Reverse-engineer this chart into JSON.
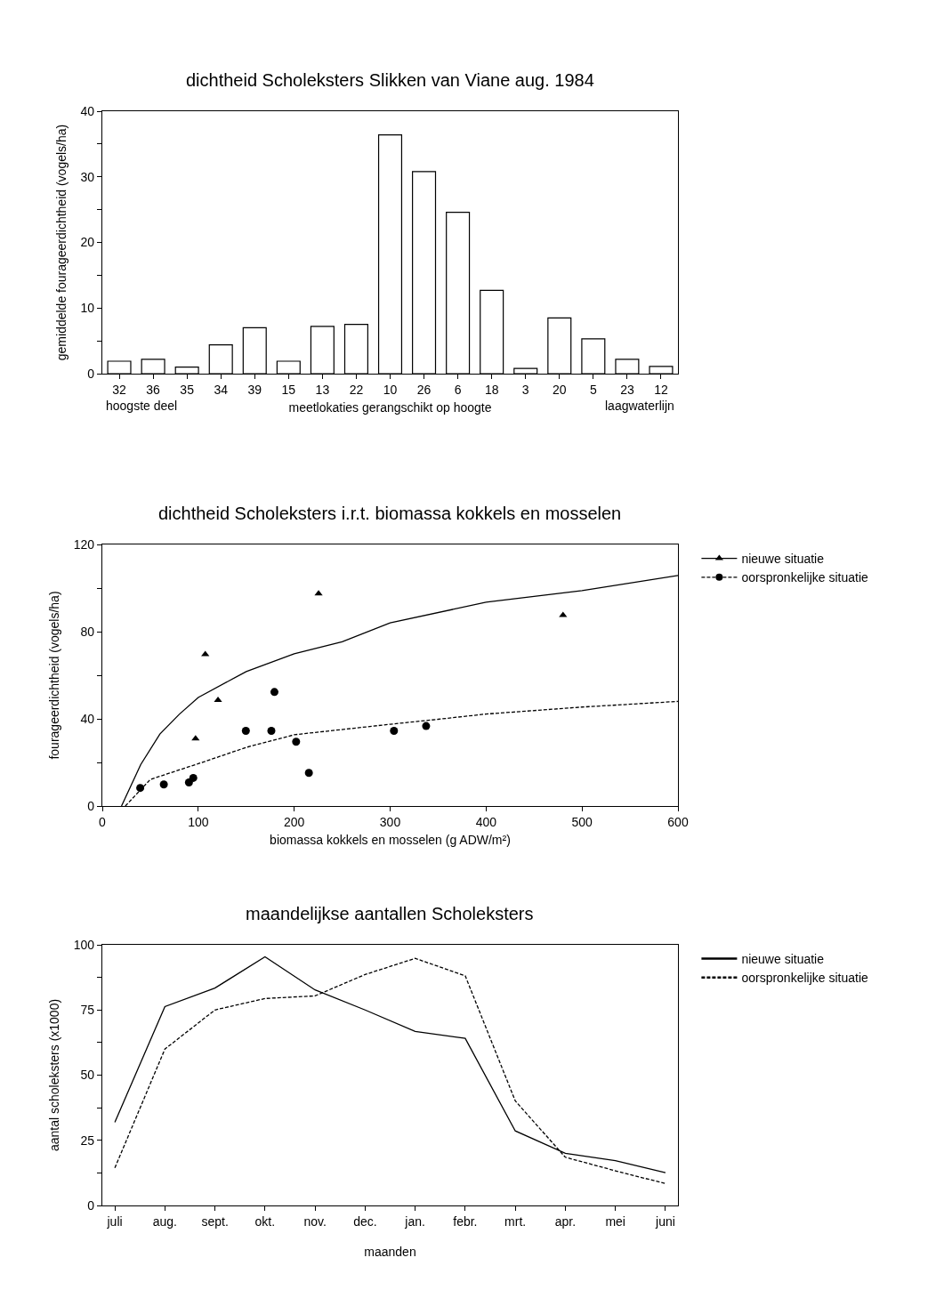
{
  "chart_data": [
    {
      "type": "bar",
      "title": "dichtheid Scholeksters Slikken van Viane aug. 1984",
      "xlabel": "meetlokaties gerangschikt op hoogte",
      "ylabel": "gemiddelde fourageerdichtheid (vogels/ha)",
      "categories": [
        "32",
        "36",
        "35",
        "34",
        "39",
        "15",
        "13",
        "22",
        "10",
        "26",
        "6",
        "18",
        "3",
        "20",
        "5",
        "23",
        "12"
      ],
      "values": [
        1.9,
        2.2,
        1.0,
        4.4,
        7.0,
        1.9,
        7.2,
        7.5,
        36.4,
        30.8,
        24.6,
        12.7,
        0.8,
        8.5,
        5.3,
        2.2,
        1.1
      ],
      "color": "#ffffff",
      "ylim": [
        0,
        40
      ],
      "yticks": [
        0,
        {
          "value": 5,
          "label": null
        },
        10,
        {
          "value": 15,
          "label": null
        },
        20,
        {
          "value": 25,
          "label": null
        },
        30,
        {
          "value": 35,
          "label": null
        },
        40
      ],
      "annotations": [
        "hoogste deel",
        "laagwaterlijn"
      ],
      "grid": false,
      "legend": false
    },
    {
      "type": "scatter",
      "title": "dichtheid Scholeksters i.r.t. biomassa kokkels en mosselen",
      "xlabel": "biomassa kokkels en mosselen (g ADW/m²)",
      "ylabel": "fourageerdichtheid (vogels/ha)",
      "series": [
        {
          "name": "nieuwe situatie",
          "type": "scatter",
          "marker": "triangle",
          "color": "#000000",
          "x": [
            107.3,
            120.6,
            97.2,
            225.4,
            480.2
          ],
          "values": [
            69.6,
            48.6,
            30.9,
            97.5,
            87.6
          ]
        },
        {
          "name": "nieuwe situatie",
          "type": "line",
          "line_style": "solid",
          "color": "#000000",
          "x": [
            20,
            40,
            60,
            80,
            100,
            150,
            200,
            250,
            300,
            400,
            500,
            600
          ],
          "values": [
            0,
            19,
            33,
            42,
            49.8,
            61.7,
            69.8,
            75.4,
            84,
            93.5,
            98.8,
            105.8
          ]
        },
        {
          "name": "oorspronkelijke situatie",
          "type": "scatter",
          "marker": "circle",
          "color": "#000000",
          "x": [
            39.5,
            64.1,
            90.3,
            94.8,
            149.6,
            176.2,
            179.4,
            202,
            215.3,
            304,
            337.5
          ],
          "values": [
            8.3,
            9.9,
            10.8,
            12.9,
            34.5,
            34.5,
            52.3,
            29.5,
            15.2,
            34.5,
            36.7
          ]
        },
        {
          "name": "oorspronkelijke situatie",
          "type": "line",
          "line_style": "dashed",
          "color": "#000000",
          "x": [
            24,
            50,
            100,
            150,
            200,
            300,
            350,
            400,
            500,
            600
          ],
          "values": [
            0,
            12.2,
            19.4,
            26.9,
            32.7,
            37.5,
            39.8,
            42.2,
            45.4,
            48
          ]
        }
      ],
      "xlim": [
        0,
        600
      ],
      "xticks": [
        0,
        100,
        200,
        300,
        400,
        500,
        600
      ],
      "ylim": [
        0,
        120
      ],
      "yticks": [
        0,
        {
          "value": 20,
          "label": null
        },
        40,
        {
          "value": 60,
          "label": null
        },
        80,
        {
          "value": 100,
          "label": null
        },
        120
      ],
      "grid": false,
      "legend": "right"
    },
    {
      "type": "line",
      "title": "maandelijkse aantallen Scholeksters",
      "xlabel": "maanden",
      "ylabel": "aantal scholeksters (x1000)",
      "categories": [
        "juli",
        "aug.",
        "sept.",
        "okt.",
        "nov.",
        "dec.",
        "jan.",
        "febr.",
        "mrt.",
        "apr.",
        "mei",
        "juni"
      ],
      "series": [
        {
          "name": "nieuwe situatie",
          "line_style": "solid",
          "color": "#000000",
          "values": [
            31.9,
            76.3,
            83.4,
            95.4,
            82.7,
            75,
            66.8,
            64.1,
            28.6,
            20,
            17.2,
            12.6
          ]
        },
        {
          "name": "oorspronkelijke situatie",
          "line_style": "dashed",
          "color": "#000000",
          "values": [
            14.4,
            60,
            75,
            79.4,
            80.4,
            88.6,
            94.8,
            88.1,
            40.1,
            18.5,
            13.3,
            8.4
          ]
        }
      ],
      "ylim": [
        0,
        100
      ],
      "yticks": [
        0,
        {
          "value": 12.5,
          "label": null
        },
        25,
        {
          "value": 37.5,
          "label": null
        },
        50,
        {
          "value": 62.5,
          "label": null
        },
        75,
        {
          "value": 87.5,
          "label": null
        },
        100
      ],
      "grid": false,
      "legend": "right"
    }
  ]
}
